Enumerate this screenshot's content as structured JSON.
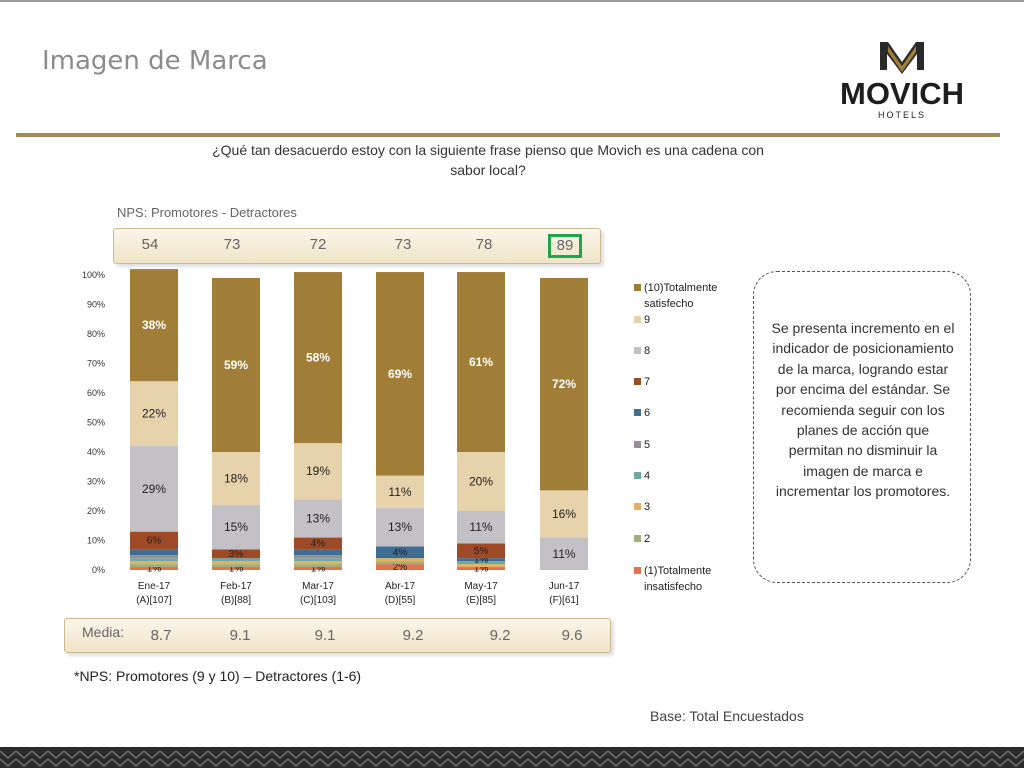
{
  "slide": {
    "title": "Imagen de Marca",
    "question": "¿Qué tan desacuerdo estoy con la siguiente frase pienso que Movich es una cadena con sabor local?",
    "nps_label": "NPS: Promotores - Detractores",
    "nps_values": [
      "54",
      "73",
      "72",
      "73",
      "78",
      "89"
    ],
    "media_label": "Media:",
    "media_values": [
      "8.7",
      "9.1",
      "9.1",
      "9.2",
      "9.2",
      "9.6"
    ],
    "footnote": "*NPS: Promotores (9 y 10) – Detractores (1-6)",
    "base": "Base: Total Encuestados",
    "note": "Se presenta incremento en el indicador de posicionamiento de la marca, logrando estar por encima del estándar. Se recomienda seguir con los planes de acción que permitan no disminuir la imagen de marca e incrementar los promotores."
  },
  "logo": {
    "name": "MOVICH",
    "subtitle": "HOTELS"
  },
  "colors": {
    "gold": "#a07e38",
    "rule": "#a58a58",
    "highlight": "#1fa64a"
  },
  "chart_data": {
    "type": "bar",
    "stacked": true,
    "categories": [
      "Ene-17",
      "Feb-17",
      "Mar-17",
      "Abr-17",
      "May-17",
      "Jun-17"
    ],
    "category_sublabels": [
      "(A)[107]",
      "(B)[88]",
      "(C)[103]",
      "(D)[55]",
      "(E)[85]",
      "(F)[61]"
    ],
    "ylim": [
      0,
      100
    ],
    "yticks": [
      "0%",
      "10%",
      "20%",
      "30%",
      "40%",
      "50%",
      "60%",
      "70%",
      "80%",
      "90%",
      "100%"
    ],
    "legend_position": "right",
    "series": [
      {
        "name": "(1)Totalmente insatisfecho",
        "color": "#e0744a",
        "values": [
          1,
          1,
          1,
          2,
          1,
          0
        ],
        "labels": [
          "1%",
          "1%",
          "1%",
          "2%",
          "1%",
          ""
        ]
      },
      {
        "name": "2",
        "color": "#9cb07e",
        "values": [
          1,
          1,
          1,
          1,
          0,
          0
        ],
        "labels": [
          "",
          "",
          "",
          "",
          "",
          ""
        ]
      },
      {
        "name": "3",
        "color": "#e3b25e",
        "values": [
          1,
          1,
          1,
          1,
          1,
          0
        ],
        "labels": [
          "",
          "",
          "",
          "",
          "",
          ""
        ]
      },
      {
        "name": "4",
        "color": "#73a7a3",
        "values": [
          1,
          1,
          1,
          0,
          1,
          0
        ],
        "labels": [
          "",
          "",
          "",
          "",
          "",
          ""
        ]
      },
      {
        "name": "5",
        "color": "#9a8c96",
        "values": [
          1,
          0,
          1,
          0,
          0,
          0
        ],
        "labels": [
          "",
          "",
          "",
          "",
          "",
          ""
        ]
      },
      {
        "name": "6",
        "color": "#3f6e95",
        "values": [
          2,
          0,
          2,
          4,
          1,
          0
        ],
        "labels": [
          "",
          "",
          "",
          "4%",
          "1%",
          ""
        ]
      },
      {
        "name": "7",
        "color": "#9e4a26",
        "values": [
          6,
          3,
          4,
          0,
          5,
          0
        ],
        "labels": [
          "6%",
          "3%",
          "4%",
          "",
          "5%",
          ""
        ]
      },
      {
        "name": "8",
        "color": "#c4c1c6",
        "values": [
          29,
          15,
          13,
          13,
          11,
          11
        ],
        "labels": [
          "29%",
          "15%",
          "13%",
          "13%",
          "11%",
          "11%"
        ]
      },
      {
        "name": "9",
        "color": "#e6d2ab",
        "values": [
          22,
          18,
          19,
          11,
          20,
          16
        ],
        "labels": [
          "22%",
          "18%",
          "19%",
          "11%",
          "20%",
          "16%"
        ]
      },
      {
        "name": "(10)Totalmente satisfecho",
        "color": "#a07e38",
        "values": [
          38,
          59,
          58,
          69,
          61,
          72
        ],
        "labels": [
          "38%",
          "59%",
          "58%",
          "69%",
          "61%",
          "72%"
        ]
      }
    ]
  }
}
